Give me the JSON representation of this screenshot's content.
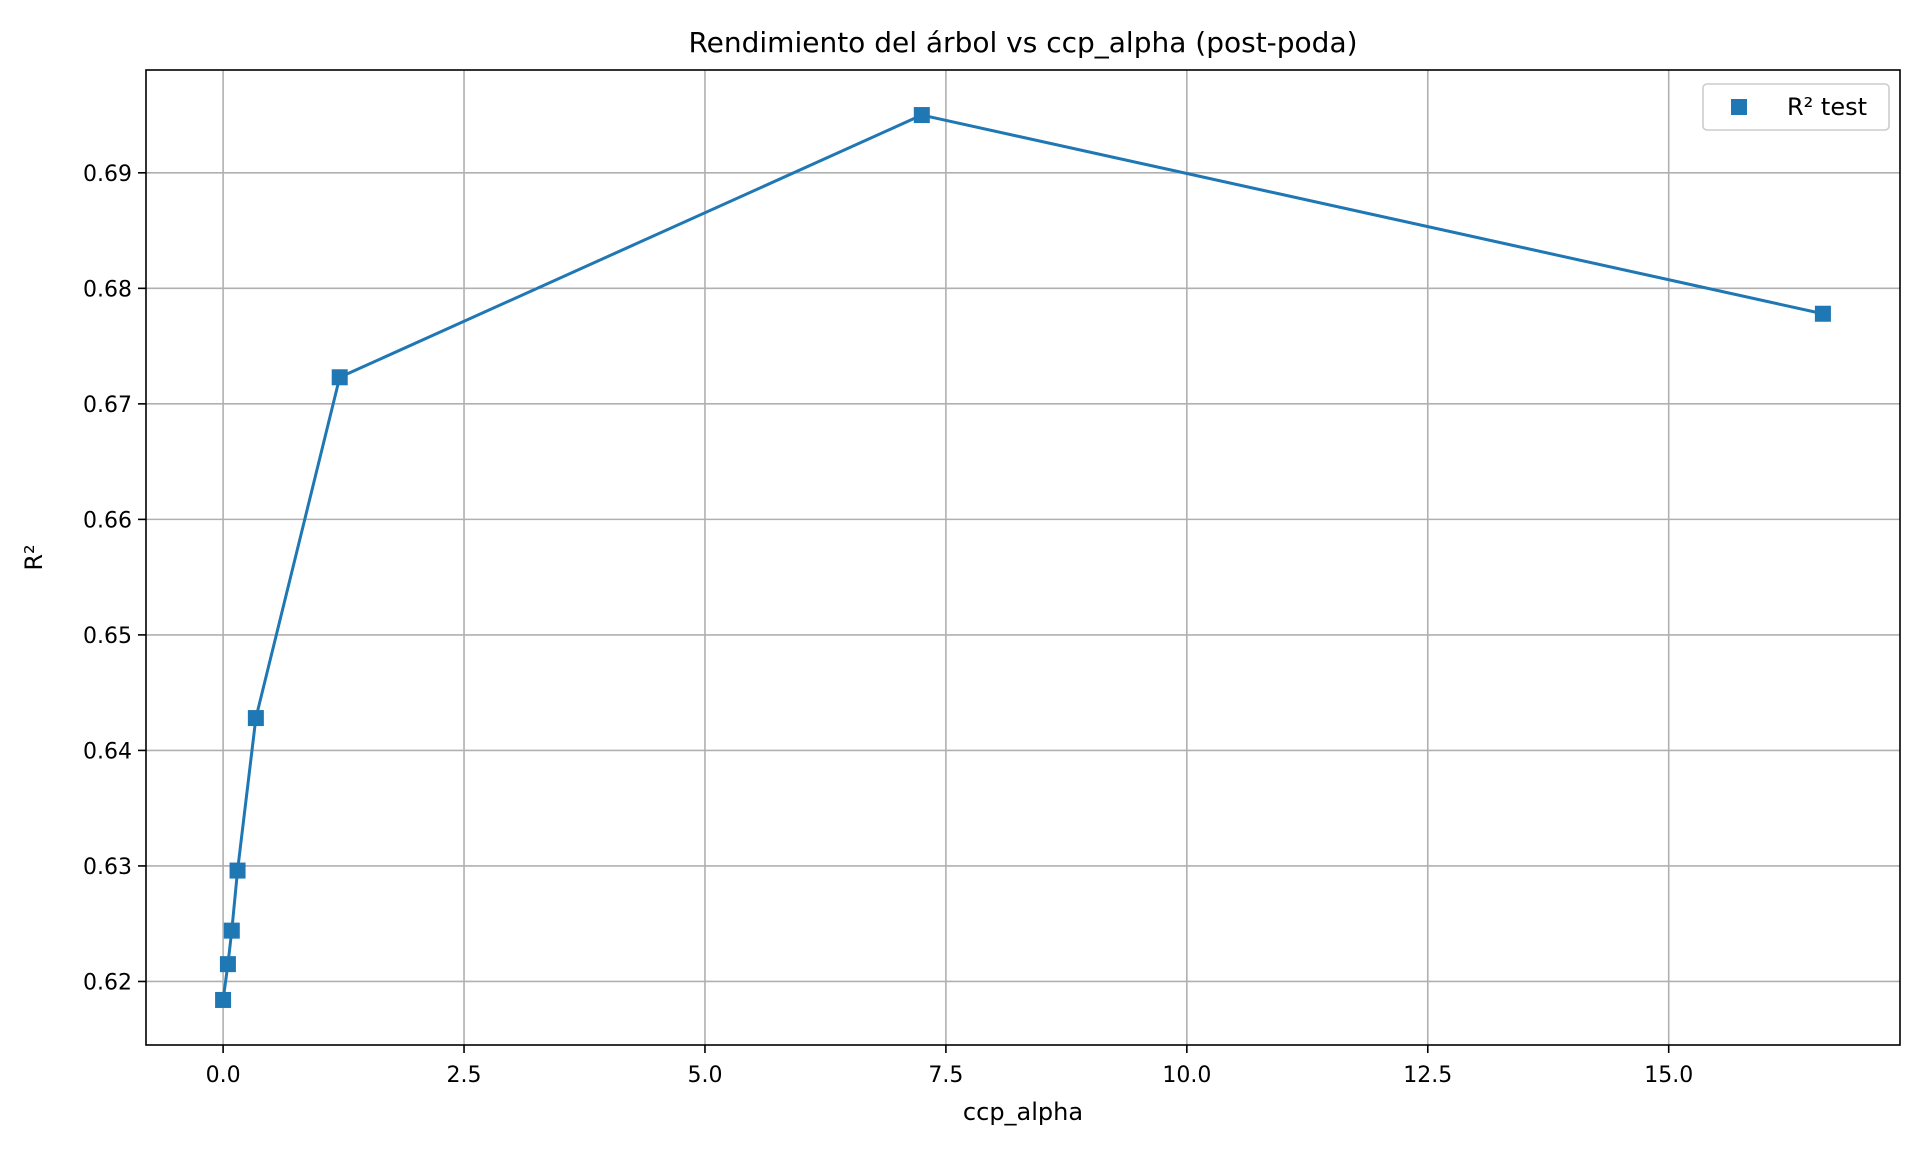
{
  "chart_data": {
    "type": "line",
    "title": "Rendimiento del árbol vs ccp_alpha (post-poda)",
    "xlabel": "ccp_alpha",
    "ylabel": "R²",
    "xlim": [
      -0.8,
      17.4
    ],
    "ylim": [
      0.6145,
      0.6989
    ],
    "xticks": [
      0.0,
      2.5,
      5.0,
      7.5,
      10.0,
      12.5,
      15.0
    ],
    "xtick_labels": [
      "0.0",
      "2.5",
      "5.0",
      "7.5",
      "10.0",
      "12.5",
      "15.0"
    ],
    "yticks": [
      0.62,
      0.63,
      0.64,
      0.65,
      0.66,
      0.67,
      0.68,
      0.69
    ],
    "ytick_labels": [
      "0.62",
      "0.63",
      "0.64",
      "0.65",
      "0.66",
      "0.67",
      "0.68",
      "0.69"
    ],
    "grid": true,
    "legend_position": "top-right",
    "series": [
      {
        "name": "R² test",
        "color": "#1f77b4",
        "marker": "square",
        "x": [
          0.0,
          0.05,
          0.09,
          0.15,
          0.34,
          1.21,
          7.25,
          16.6
        ],
        "y": [
          0.6184,
          0.6215,
          0.6244,
          0.6296,
          0.6428,
          0.6723,
          0.695,
          0.6778
        ]
      }
    ]
  }
}
